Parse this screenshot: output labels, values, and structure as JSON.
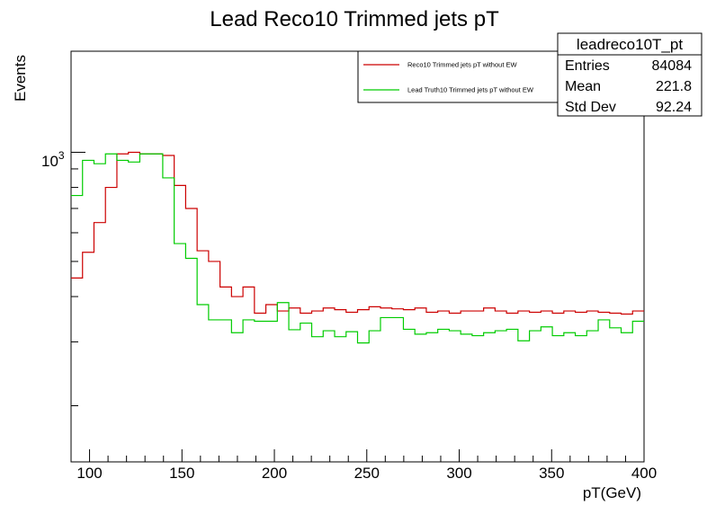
{
  "chart_data": {
    "type": "histogram",
    "title": "Lead Reco10 Trimmed jets pT",
    "xlabel": "pT(GeV)",
    "ylabel": "Events",
    "xlim": [
      90,
      400
    ],
    "y_scale": "log",
    "ylim": [
      140,
      1900
    ],
    "y_tick_label": "10",
    "y_tick_exponent": "3",
    "x_ticks": [
      100,
      150,
      200,
      250,
      300,
      350,
      400
    ],
    "x_tick_labels": [
      "100",
      "150",
      "200",
      "250",
      "300",
      "350",
      "400"
    ],
    "bin_edges_start": 90,
    "bin_width": 6.2,
    "series": [
      {
        "name": "Reco10 Trimmed jets pT without EW",
        "color": "#cc0000",
        "values": [
          450,
          530,
          640,
          800,
          990,
          1000,
          990,
          990,
          980,
          810,
          700,
          535,
          500,
          425,
          400,
          425,
          360,
          380,
          365,
          372,
          360,
          365,
          372,
          368,
          362,
          368,
          375,
          372,
          370,
          368,
          372,
          362,
          365,
          360,
          365,
          365,
          372,
          365,
          360,
          365,
          362,
          365,
          360,
          365,
          362,
          365,
          362,
          360,
          358,
          365,
          365
        ]
      },
      {
        "name": "Lead Truth10 Trimmed jets pT without EW",
        "color": "#00cc00",
        "values": [
          760,
          950,
          930,
          990,
          950,
          940,
          990,
          990,
          850,
          560,
          510,
          380,
          345,
          345,
          318,
          345,
          342,
          342,
          385,
          324,
          338,
          310,
          322,
          310,
          320,
          298,
          322,
          350,
          350,
          325,
          315,
          318,
          325,
          322,
          315,
          312,
          318,
          322,
          325,
          302,
          322,
          330,
          312,
          318,
          312,
          322,
          345,
          328,
          318,
          342,
          340
        ]
      }
    ]
  },
  "legend": {
    "entries": [
      {
        "label": "Reco10 Trimmed jets pT without EW",
        "color": "#cc0000"
      },
      {
        "label": "Lead Truth10 Trimmed jets pT without EW",
        "color": "#00cc00"
      }
    ]
  },
  "stats_box": {
    "title": "leadreco10T_pt",
    "rows": [
      {
        "label": "Entries",
        "value": "84084"
      },
      {
        "label": "Mean",
        "value": "221.8"
      },
      {
        "label": "Std Dev",
        "value": "92.24"
      }
    ]
  }
}
